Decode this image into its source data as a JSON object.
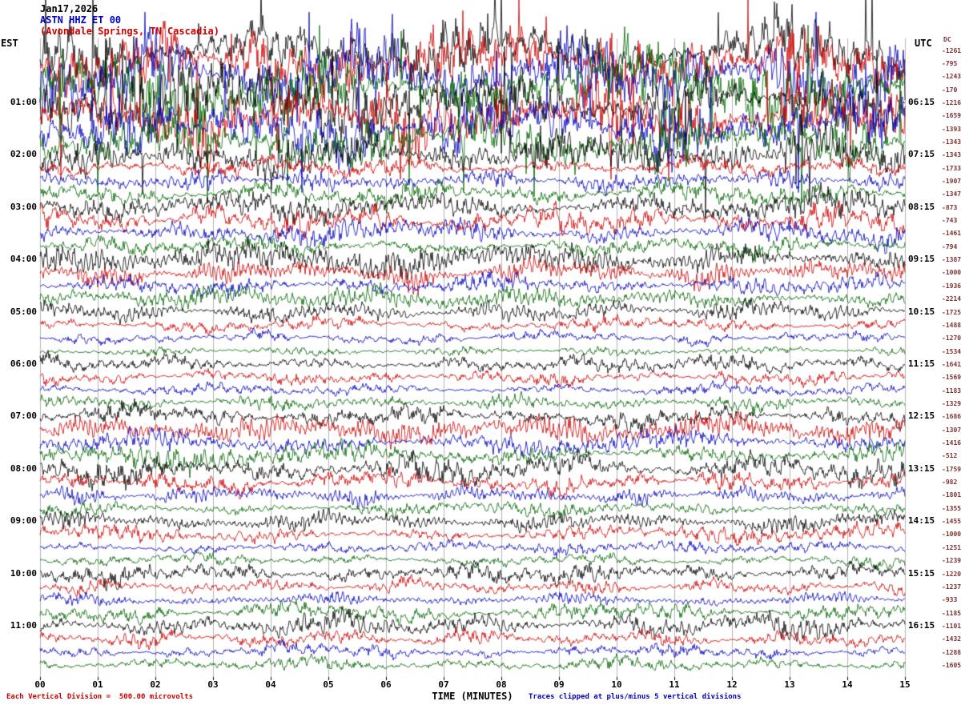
{
  "header": {
    "date": "Jan17,2026",
    "station": "ASTN HHZ ET 00",
    "location": "(Avondale Springs, TN Cascadia)"
  },
  "axes": {
    "left_timezone": "EST",
    "right_timezone": "UTC",
    "dc_header": "DC",
    "x_label": "TIME (MINUTES)",
    "x_ticks": [
      "00",
      "01",
      "02",
      "03",
      "04",
      "05",
      "06",
      "07",
      "08",
      "09",
      "10",
      "11",
      "12",
      "13",
      "14",
      "15"
    ]
  },
  "footer": {
    "scale_note": "Each Vertical Division =  500.00 microvolts",
    "clip_note": "Traces clipped at plus/minus 5 vertical divisions"
  },
  "chart_data": {
    "type": "line",
    "title": "ASTN HHZ ET 00 helicorder seismogram",
    "x_axis": {
      "label": "TIME (MINUTES)",
      "min": 0,
      "max": 15,
      "gridlines": true
    },
    "n_rows": 48,
    "minutes_per_row": 15,
    "scale": {
      "microvolts_per_division": 500,
      "clip_divisions": 5
    },
    "trace_color_cycle": [
      "#000000",
      "#cc0000",
      "#0000bb",
      "#006600"
    ],
    "hour_labels": [
      {
        "row": 4,
        "est": "01:00",
        "utc": "06:15"
      },
      {
        "row": 8,
        "est": "02:00",
        "utc": "07:15"
      },
      {
        "row": 12,
        "est": "03:00",
        "utc": "08:15"
      },
      {
        "row": 16,
        "est": "04:00",
        "utc": "09:15"
      },
      {
        "row": 20,
        "est": "05:00",
        "utc": "10:15"
      },
      {
        "row": 24,
        "est": "06:00",
        "utc": "11:15"
      },
      {
        "row": 28,
        "est": "07:00",
        "utc": "12:15"
      },
      {
        "row": 32,
        "est": "08:00",
        "utc": "13:15"
      },
      {
        "row": 36,
        "est": "09:00",
        "utc": "14:15"
      },
      {
        "row": 40,
        "est": "10:00",
        "utc": "15:15"
      },
      {
        "row": 44,
        "est": "11:00",
        "utc": "16:15"
      }
    ],
    "dc_offsets": [
      -1261,
      -795,
      -1243,
      -170,
      -1216,
      -1659,
      -1393,
      -1343,
      -1343,
      -1733,
      -1907,
      -1347,
      -873,
      -743,
      -1461,
      -794,
      -1387,
      -1000,
      -1936,
      -2214,
      -1725,
      -1488,
      -1270,
      -1534,
      -1641,
      -1569,
      -1183,
      -1329,
      -1686,
      -1307,
      -1416,
      -512,
      -1759,
      -982,
      -1801,
      -1355,
      -1455,
      -1000,
      -1251,
      -1239,
      -1220,
      -1237,
      -933,
      -1185,
      -1101,
      -1432,
      -1288,
      -1605
    ],
    "amplitudes": [
      26,
      28,
      30,
      30,
      30,
      28,
      26,
      22,
      18,
      8,
      8,
      10,
      12,
      12,
      10,
      8,
      12,
      10,
      8,
      8,
      8,
      6,
      5,
      6,
      7,
      6,
      5,
      6,
      9,
      10,
      9,
      10,
      12,
      9,
      7,
      6,
      8,
      7,
      5,
      5,
      9,
      6,
      5,
      8,
      10,
      7,
      6,
      6
    ],
    "spiky_rows": [
      0,
      1,
      2,
      3,
      4,
      5,
      6,
      7,
      8
    ]
  }
}
